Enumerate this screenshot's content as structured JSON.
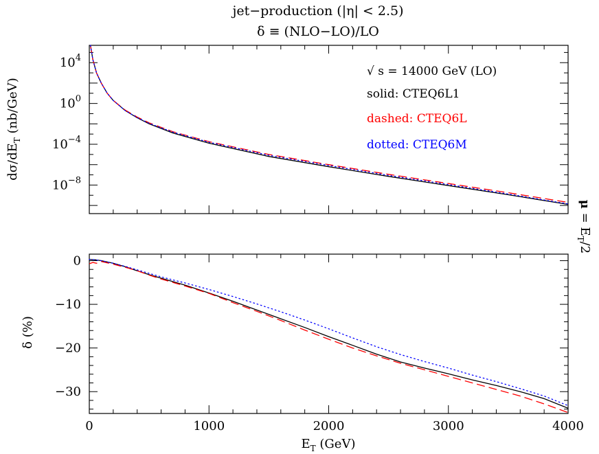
{
  "chart_data": [
    {
      "type": "line",
      "title": "jet−production (|η| < 2.5)",
      "ylabel": "dσ/dE",
      "ylabel_sub": "T",
      "ylabel_unit": " (nb/GeV)",
      "yscale": "log",
      "xlim": [
        0,
        4000
      ],
      "ylim_log10": [
        -10.8,
        5.7
      ],
      "ytick_labels": [
        {
          "exp": 4,
          "text_base": "10",
          "text_exp": "4"
        },
        {
          "exp": 0,
          "text_base": "10",
          "text_exp": "0"
        },
        {
          "exp": -4,
          "text_base": "10",
          "text_exp": "−4"
        },
        {
          "exp": -8,
          "text_base": "10",
          "text_exp": "−8"
        }
      ],
      "annotation": "√ s = 14000 GeV (LO)",
      "legend": [
        {
          "label": "solid: CTEQ6L1",
          "color": "#000000",
          "style": "solid"
        },
        {
          "label": "dashed: CTEQ6L",
          "color": "#ff0000",
          "style": "dashed"
        },
        {
          "label": "dotted: CTEQ6M",
          "color": "#0000ff",
          "style": "dotted"
        }
      ],
      "series": [
        {
          "name": "CTEQ6L1",
          "color": "#000000",
          "style": "solid",
          "x": [
            10,
            30,
            60,
            100,
            150,
            200,
            300,
            400,
            500,
            700,
            1000,
            1500,
            2000,
            2500,
            3000,
            3500,
            4000
          ],
          "log10_y": [
            5.7,
            4.3,
            3.0,
            2.0,
            1.0,
            0.3,
            -0.7,
            -1.4,
            -2.0,
            -2.9,
            -3.9,
            -5.2,
            -6.2,
            -7.15,
            -8.05,
            -8.95,
            -9.9
          ]
        },
        {
          "name": "CTEQ6L",
          "color": "#ff0000",
          "style": "dashed",
          "x": [
            10,
            30,
            60,
            100,
            150,
            200,
            300,
            400,
            500,
            700,
            1000,
            1500,
            2000,
            2500,
            3000,
            3500,
            4000
          ],
          "log10_y": [
            5.7,
            4.3,
            3.0,
            2.0,
            1.0,
            0.3,
            -0.65,
            -1.33,
            -1.9,
            -2.78,
            -3.75,
            -5.0,
            -6.0,
            -6.95,
            -7.85,
            -8.75,
            -9.7
          ]
        },
        {
          "name": "CTEQ6M",
          "color": "#0000ff",
          "style": "dotted",
          "x": [
            10,
            30,
            60,
            100,
            150,
            200,
            300,
            400,
            500,
            700,
            1000,
            1500,
            2000,
            2500,
            3000,
            3500,
            4000
          ],
          "log10_y": [
            5.7,
            4.3,
            3.0,
            2.0,
            1.0,
            0.3,
            -0.7,
            -1.38,
            -1.95,
            -2.82,
            -3.8,
            -5.08,
            -6.08,
            -7.05,
            -7.95,
            -8.88,
            -9.85
          ]
        }
      ]
    },
    {
      "type": "line",
      "title": "δ ≡ (NLO−LO)/LO",
      "xlabel": "E",
      "xlabel_sub": "T",
      "xlabel_unit": " (GeV)",
      "ylabel": "δ (%)",
      "xlim": [
        0,
        4000
      ],
      "ylim": [
        -35,
        1.5
      ],
      "xticks": [
        0,
        1000,
        2000,
        3000,
        4000
      ],
      "xtick_labels": [
        "0",
        "1000",
        "2000",
        "3000",
        "4000"
      ],
      "yticks": [
        0,
        -10,
        -20,
        -30
      ],
      "ytick_labels": [
        "0",
        "−10",
        "−20",
        "−30"
      ],
      "series": [
        {
          "name": "CTEQ6L1",
          "color": "#000000",
          "style": "solid",
          "x": [
            0,
            50,
            100,
            150,
            200,
            300,
            400,
            500,
            600,
            800,
            1000,
            1200,
            1400,
            1600,
            1800,
            2000,
            2200,
            2400,
            2600,
            2800,
            3000,
            3200,
            3400,
            3600,
            3800,
            4000
          ],
          "y": [
            0.3,
            0.2,
            0.0,
            -0.3,
            -0.6,
            -1.4,
            -2.3,
            -3.2,
            -4.0,
            -5.6,
            -7.4,
            -9.3,
            -11.3,
            -13.3,
            -15.3,
            -17.4,
            -19.4,
            -21.4,
            -23.2,
            -24.6,
            -25.9,
            -27.3,
            -28.6,
            -30.0,
            -31.6,
            -33.8
          ]
        },
        {
          "name": "CTEQ6L",
          "color": "#ff0000",
          "style": "dashed",
          "x": [
            0,
            30,
            60,
            100,
            150,
            200,
            300,
            400,
            500,
            600,
            800,
            1000,
            1200,
            1400,
            1600,
            1800,
            2000,
            2200,
            2400,
            2600,
            2800,
            3000,
            3200,
            3400,
            3600,
            3800,
            4000
          ],
          "y": [
            -0.7,
            -0.4,
            -0.6,
            -0.2,
            -0.5,
            -0.8,
            -1.5,
            -2.3,
            -3.3,
            -4.2,
            -5.8,
            -7.5,
            -9.6,
            -11.6,
            -13.7,
            -15.9,
            -18.0,
            -20.0,
            -21.8,
            -23.5,
            -25.0,
            -26.5,
            -28.0,
            -29.5,
            -31.0,
            -32.8,
            -34.8
          ]
        },
        {
          "name": "CTEQ6M",
          "color": "#0000ff",
          "style": "dotted",
          "x": [
            0,
            50,
            100,
            150,
            200,
            300,
            400,
            500,
            600,
            800,
            1000,
            1200,
            1400,
            1600,
            1800,
            2000,
            2200,
            2400,
            2600,
            2800,
            3000,
            3200,
            3400,
            3600,
            3800,
            4000
          ],
          "y": [
            0.3,
            0.2,
            0.0,
            -0.3,
            -0.6,
            -1.3,
            -2.1,
            -2.9,
            -3.7,
            -5.1,
            -6.6,
            -8.2,
            -9.9,
            -11.7,
            -13.6,
            -15.6,
            -17.7,
            -19.7,
            -21.5,
            -23.1,
            -24.6,
            -26.2,
            -27.7,
            -29.3,
            -31.0,
            -33.2
          ]
        }
      ]
    }
  ],
  "side_label": {
    "mu": "μ",
    "eq": " = E",
    "sub": "T",
    "rest": "/2"
  }
}
